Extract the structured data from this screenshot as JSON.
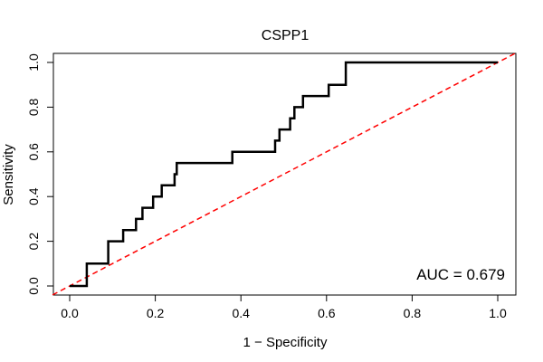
{
  "chart_data": {
    "type": "line",
    "title": "CSPP1",
    "xlabel": "1 − Specificity",
    "ylabel": "Sensitivity",
    "xlim": [
      0.0,
      1.0
    ],
    "ylim": [
      0.0,
      1.0
    ],
    "x_ticks": [
      "0.0",
      "0.2",
      "0.4",
      "0.6",
      "0.8",
      "1.0"
    ],
    "y_ticks": [
      "0.0",
      "0.2",
      "0.4",
      "0.6",
      "0.8",
      "1.0"
    ],
    "grid": false,
    "legend": "none",
    "annotation": "AUC = 0.679",
    "series": [
      {
        "role": "roc-curve",
        "color": "#000000",
        "points": [
          [
            0.0,
            0.0
          ],
          [
            0.04,
            0.0
          ],
          [
            0.04,
            0.1
          ],
          [
            0.09,
            0.1
          ],
          [
            0.09,
            0.2
          ],
          [
            0.125,
            0.2
          ],
          [
            0.125,
            0.25
          ],
          [
            0.155,
            0.25
          ],
          [
            0.155,
            0.3
          ],
          [
            0.17,
            0.3
          ],
          [
            0.17,
            0.35
          ],
          [
            0.195,
            0.35
          ],
          [
            0.195,
            0.4
          ],
          [
            0.215,
            0.4
          ],
          [
            0.215,
            0.45
          ],
          [
            0.245,
            0.45
          ],
          [
            0.245,
            0.5
          ],
          [
            0.25,
            0.5
          ],
          [
            0.25,
            0.55
          ],
          [
            0.38,
            0.55
          ],
          [
            0.38,
            0.6
          ],
          [
            0.48,
            0.6
          ],
          [
            0.48,
            0.65
          ],
          [
            0.49,
            0.65
          ],
          [
            0.49,
            0.7
          ],
          [
            0.515,
            0.7
          ],
          [
            0.515,
            0.75
          ],
          [
            0.525,
            0.75
          ],
          [
            0.525,
            0.8
          ],
          [
            0.545,
            0.8
          ],
          [
            0.545,
            0.85
          ],
          [
            0.605,
            0.85
          ],
          [
            0.605,
            0.9
          ],
          [
            0.645,
            0.9
          ],
          [
            0.645,
            1.0
          ],
          [
            1.0,
            1.0
          ]
        ]
      },
      {
        "role": "reference-diagonal",
        "color": "#ff0000",
        "dashed": true,
        "points": [
          [
            -0.04,
            -0.04
          ],
          [
            1.04,
            1.04
          ]
        ]
      }
    ]
  }
}
